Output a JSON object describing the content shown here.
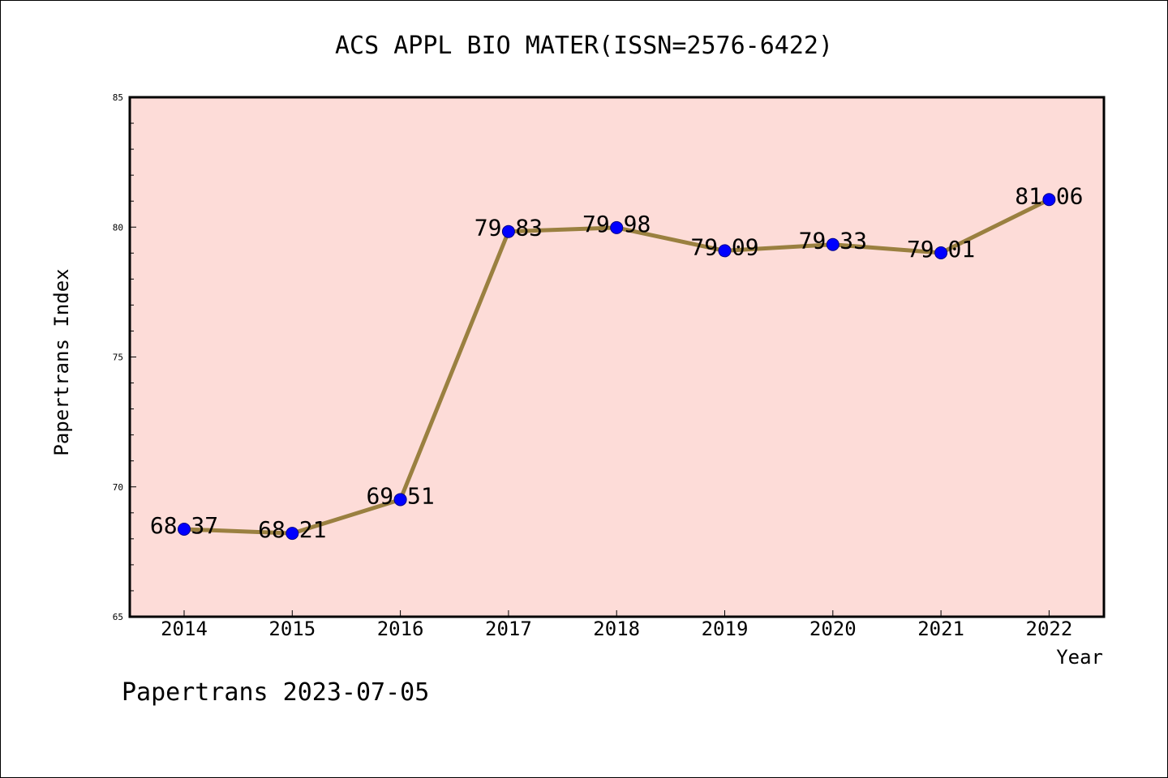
{
  "chart_data": {
    "type": "line",
    "title": "ACS APPL BIO MATER(ISSN=2576-6422)",
    "xlabel": "Year",
    "ylabel": "Papertrans Index",
    "categories": [
      "2014",
      "2015",
      "2016",
      "2017",
      "2018",
      "2019",
      "2020",
      "2021",
      "2022"
    ],
    "values": [
      68.37,
      68.21,
      69.51,
      79.83,
      79.98,
      79.09,
      79.33,
      79.01,
      81.06
    ],
    "value_labels": [
      "68.37",
      "68.21",
      "69.51",
      "79.83",
      "79.98",
      "79.09",
      "79.33",
      "79.01",
      "81.06"
    ],
    "ylim": [
      65,
      85
    ],
    "yticks": [
      "65",
      "70",
      "75",
      "80",
      "85"
    ],
    "grid": false,
    "legend": "none",
    "colors": {
      "plot_background": "#fddcd8",
      "line": "#9a8040",
      "marker": "#0000ff",
      "marker_edge": "#00008b"
    }
  },
  "footer": "Papertrans 2023-07-05"
}
